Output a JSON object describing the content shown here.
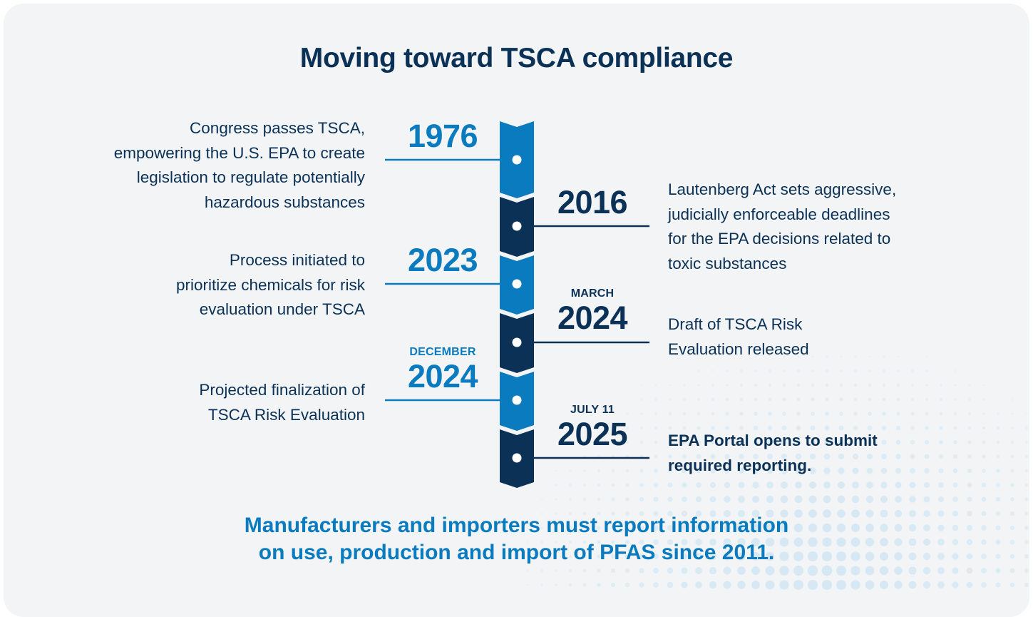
{
  "title": "Moving toward TSCA compliance",
  "colors": {
    "light_blue": "#0a7bbf",
    "navy": "#0b3256",
    "background": "#f2f4f6",
    "dot": "#ffffff"
  },
  "timeline": [
    {
      "month": "",
      "year": "1976",
      "side": "left",
      "color": "light_blue",
      "lines": [
        "Congress passes TSCA,",
        "empowering the U.S. EPA to create",
        "legislation to regulate potentially",
        "hazardous substances"
      ]
    },
    {
      "month": "",
      "year": "2016",
      "side": "right",
      "color": "navy",
      "lines": [
        "Lautenberg Act sets aggressive,",
        "judicially enforceable deadlines",
        "for the EPA decisions related to",
        "toxic substances"
      ]
    },
    {
      "month": "",
      "year": "2023",
      "side": "left",
      "color": "light_blue",
      "lines": [
        "Process initiated to",
        "prioritize chemicals for risk",
        "evaluation under TSCA"
      ]
    },
    {
      "month": "MARCH",
      "year": "2024",
      "side": "right",
      "color": "navy",
      "lines": [
        "Draft of TSCA Risk",
        "Evaluation released"
      ]
    },
    {
      "month": "DECEMBER",
      "year": "2024",
      "side": "left",
      "color": "light_blue",
      "lines": [
        "Projected finalization of",
        "TSCA Risk Evaluation"
      ]
    },
    {
      "month": "JULY 11",
      "year": "2025",
      "side": "right",
      "color": "navy",
      "bold": true,
      "lines": [
        "EPA Portal opens to submit",
        "required reporting."
      ]
    }
  ],
  "footer": {
    "line1": "Manufacturers and importers must report information",
    "line2": "on use, production and import of PFAS since 2011."
  }
}
